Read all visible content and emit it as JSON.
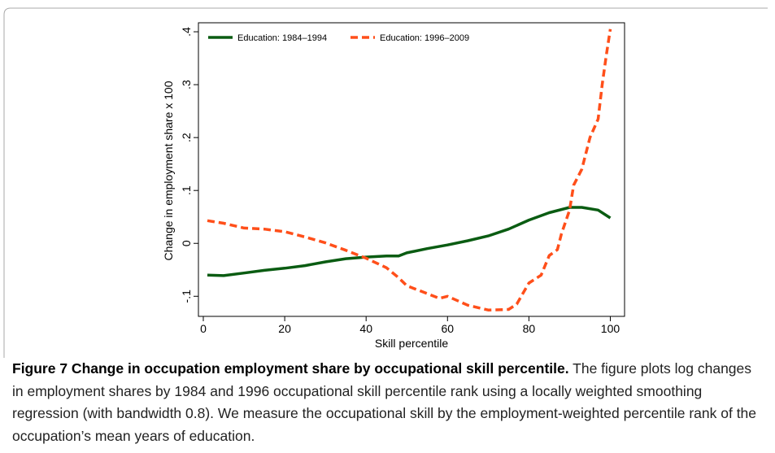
{
  "chart_data": {
    "type": "line",
    "xlabel": "Skill percentile",
    "ylabel": "Change in employment share x 100",
    "xlim": [
      -1.2,
      103.5
    ],
    "ylim": [
      -0.138,
      0.417
    ],
    "xticks": [
      0,
      20,
      40,
      60,
      80,
      100
    ],
    "yticks": [
      {
        "value": -0.1,
        "label": "-.1"
      },
      0,
      {
        "value": 0.1,
        "label": ".1"
      },
      {
        "value": 0.2,
        "label": ".2"
      },
      {
        "value": 0.3,
        "label": ".3"
      },
      {
        "value": 0.4,
        "label": ".4"
      }
    ],
    "legend": "top-left",
    "series": [
      {
        "name": "Education: 1984–1994",
        "color": "#0a5c12",
        "dash": false,
        "x": [
          1,
          5,
          10,
          15,
          20,
          25,
          30,
          35,
          40,
          45,
          48,
          50,
          55,
          60,
          65,
          70,
          75,
          80,
          85,
          90,
          93,
          97,
          100
        ],
        "values": [
          -0.06,
          -0.061,
          -0.056,
          -0.051,
          -0.047,
          -0.042,
          -0.035,
          -0.029,
          -0.026,
          -0.024,
          -0.024,
          -0.018,
          -0.01,
          -0.003,
          0.005,
          0.014,
          0.027,
          0.044,
          0.058,
          0.068,
          0.068,
          0.063,
          0.048
        ]
      },
      {
        "name": "Education: 1996–2009",
        "color": "#ff4f1a",
        "dash": true,
        "x": [
          1,
          5,
          10,
          15,
          20,
          25,
          30,
          35,
          40,
          45,
          48,
          50,
          55,
          58,
          60,
          65,
          70,
          75,
          77,
          80,
          83,
          85,
          87,
          88,
          90,
          91,
          93,
          95,
          97,
          98,
          99,
          100
        ],
        "values": [
          0.043,
          0.038,
          0.029,
          0.027,
          0.022,
          0.012,
          0.001,
          -0.013,
          -0.028,
          -0.046,
          -0.065,
          -0.08,
          -0.095,
          -0.104,
          -0.1,
          -0.117,
          -0.126,
          -0.125,
          -0.115,
          -0.075,
          -0.06,
          -0.023,
          -0.012,
          0.018,
          0.063,
          0.11,
          0.14,
          0.2,
          0.235,
          0.3,
          0.355,
          0.405
        ]
      }
    ]
  },
  "caption": {
    "label": "Figure 7 Change in occupation employment share by occupational skill percentile.",
    "text": "The figure plots log changes in employment shares by 1984 and 1996 occupational skill percentile rank using a locally weighted smoothing regression (with bandwidth 0.8). We measure the occupational skill by the employment-weighted percentile rank of the occupation’s mean years of education."
  }
}
